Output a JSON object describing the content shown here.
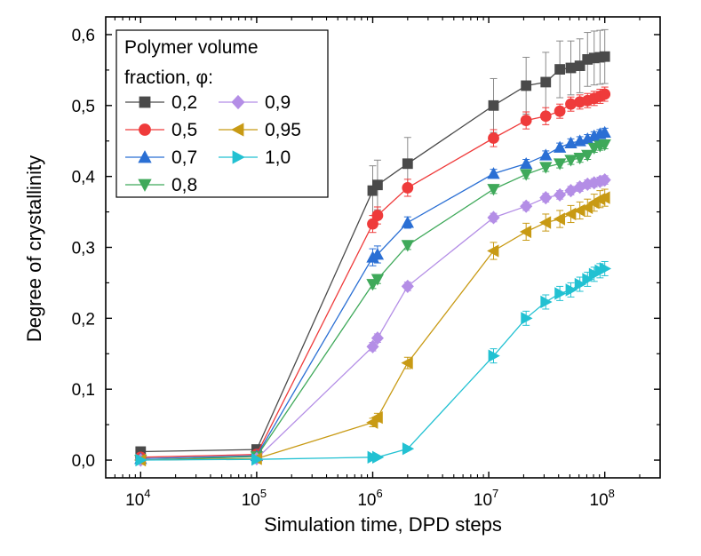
{
  "chart_data": {
    "type": "scatter",
    "xlabel": "Simulation time, DPD steps",
    "ylabel": "Degree of crystallinity",
    "xscale": "log",
    "xlim": [
      5000,
      300000000
    ],
    "ylim": [
      -0.025,
      0.625
    ],
    "grid": false,
    "legend": {
      "title_line1": "Polymer volume",
      "title_line2": "fraction, φ:",
      "placement": "top-left"
    },
    "x_ticks": [
      {
        "base": "10",
        "exp": "4",
        "value": 10000
      },
      {
        "base": "10",
        "exp": "5",
        "value": 100000
      },
      {
        "base": "10",
        "exp": "6",
        "value": 1000000
      },
      {
        "base": "10",
        "exp": "7",
        "value": 10000000
      },
      {
        "base": "10",
        "exp": "8",
        "value": 100000000
      }
    ],
    "y_ticks": [
      {
        "label": "0,0",
        "value": 0.0
      },
      {
        "label": "0,1",
        "value": 0.1
      },
      {
        "label": "0,2",
        "value": 0.2
      },
      {
        "label": "0,3",
        "value": 0.3
      },
      {
        "label": "0,4",
        "value": 0.4
      },
      {
        "label": "0,5",
        "value": 0.5
      },
      {
        "label": "0,6",
        "value": 0.6
      }
    ],
    "series": [
      {
        "name": "0,2",
        "marker": "square",
        "color": "#4a4a4a",
        "x": [
          10000,
          100000,
          1000000,
          1100000,
          2000000,
          11000000,
          21000000,
          31000000,
          41000000,
          51000000,
          61000000,
          71000000,
          81000000,
          91000000,
          100000000
        ],
        "y": [
          0.012,
          0.015,
          0.38,
          0.388,
          0.418,
          0.5,
          0.528,
          0.533,
          0.551,
          0.553,
          0.556,
          0.565,
          0.567,
          0.568,
          0.569
        ],
        "err": [
          0.003,
          0.004,
          0.035,
          0.035,
          0.037,
          0.038,
          0.04,
          0.042,
          0.04,
          0.038,
          0.038,
          0.038,
          0.038,
          0.038,
          0.038
        ]
      },
      {
        "name": "0,5",
        "marker": "circle",
        "color": "#ef3b3b",
        "x": [
          10000,
          100000,
          1000000,
          1100000,
          2000000,
          11000000,
          21000000,
          31000000,
          41000000,
          51000000,
          61000000,
          71000000,
          81000000,
          91000000,
          100000000
        ],
        "y": [
          0.004,
          0.008,
          0.333,
          0.345,
          0.384,
          0.454,
          0.479,
          0.485,
          0.492,
          0.502,
          0.505,
          0.507,
          0.51,
          0.513,
          0.516
        ],
        "err": [
          0.002,
          0.003,
          0.012,
          0.012,
          0.012,
          0.012,
          0.012,
          0.012,
          0.01,
          0.01,
          0.01,
          0.01,
          0.01,
          0.01,
          0.01
        ]
      },
      {
        "name": "0,7",
        "marker": "triangle-up",
        "color": "#2a6fd4",
        "x": [
          10000,
          100000,
          1000000,
          1100000,
          2000000,
          11000000,
          21000000,
          31000000,
          41000000,
          51000000,
          61000000,
          71000000,
          81000000,
          91000000,
          100000000
        ],
        "y": [
          0.002,
          0.006,
          0.286,
          0.29,
          0.335,
          0.404,
          0.418,
          0.43,
          0.441,
          0.447,
          0.45,
          0.453,
          0.457,
          0.46,
          0.462
        ],
        "err": [
          0.002,
          0.002,
          0.012,
          0.012,
          0.008,
          0.006,
          0.006,
          0.006,
          0.006,
          0.006,
          0.006,
          0.006,
          0.006,
          0.006,
          0.006
        ]
      },
      {
        "name": "0,8",
        "marker": "triangle-down",
        "color": "#3fa95a",
        "x": [
          10000,
          100000,
          1000000,
          1100000,
          2000000,
          11000000,
          21000000,
          31000000,
          41000000,
          51000000,
          61000000,
          71000000,
          81000000,
          91000000,
          100000000
        ],
        "y": [
          0.0,
          0.005,
          0.248,
          0.255,
          0.303,
          0.382,
          0.403,
          0.413,
          0.418,
          0.423,
          0.426,
          0.43,
          0.44,
          0.443,
          0.445
        ],
        "err": [
          0.002,
          0.002,
          0.006,
          0.006,
          0.006,
          0.006,
          0.006,
          0.006,
          0.006,
          0.006,
          0.006,
          0.006,
          0.006,
          0.006,
          0.006
        ]
      },
      {
        "name": "0,9",
        "marker": "diamond",
        "color": "#b48ee6",
        "x": [
          10000,
          100000,
          1000000,
          1100000,
          2000000,
          11000000,
          21000000,
          31000000,
          41000000,
          51000000,
          61000000,
          71000000,
          81000000,
          91000000,
          100000000
        ],
        "y": [
          0.0,
          0.002,
          0.16,
          0.172,
          0.245,
          0.342,
          0.358,
          0.37,
          0.374,
          0.38,
          0.385,
          0.389,
          0.391,
          0.393,
          0.395
        ],
        "err": [
          0.002,
          0.002,
          0.006,
          0.006,
          0.006,
          0.006,
          0.006,
          0.006,
          0.006,
          0.006,
          0.006,
          0.006,
          0.006,
          0.006,
          0.006
        ]
      },
      {
        "name": "0,95",
        "marker": "triangle-left",
        "color": "#c89a14",
        "x": [
          10000,
          100000,
          1000000,
          1100000,
          2000000,
          11000000,
          21000000,
          31000000,
          41000000,
          51000000,
          61000000,
          71000000,
          81000000,
          91000000,
          100000000
        ],
        "y": [
          0.0,
          0.002,
          0.053,
          0.06,
          0.137,
          0.295,
          0.322,
          0.335,
          0.34,
          0.347,
          0.352,
          0.356,
          0.363,
          0.368,
          0.37
        ],
        "err": [
          0.002,
          0.002,
          0.006,
          0.006,
          0.008,
          0.012,
          0.012,
          0.012,
          0.012,
          0.012,
          0.012,
          0.012,
          0.012,
          0.012,
          0.012
        ]
      },
      {
        "name": "1,0",
        "marker": "triangle-right",
        "color": "#22c1d2",
        "x": [
          10000,
          100000,
          1000000,
          1100000,
          2000000,
          11000000,
          21000000,
          31000000,
          41000000,
          51000000,
          61000000,
          71000000,
          81000000,
          91000000,
          100000000
        ],
        "y": [
          0.0,
          0.001,
          0.004,
          0.004,
          0.016,
          0.147,
          0.2,
          0.223,
          0.235,
          0.24,
          0.248,
          0.255,
          0.262,
          0.267,
          0.27
        ],
        "err": [
          0.001,
          0.001,
          0.002,
          0.002,
          0.003,
          0.01,
          0.01,
          0.01,
          0.01,
          0.01,
          0.01,
          0.01,
          0.01,
          0.01,
          0.01
        ]
      }
    ]
  }
}
